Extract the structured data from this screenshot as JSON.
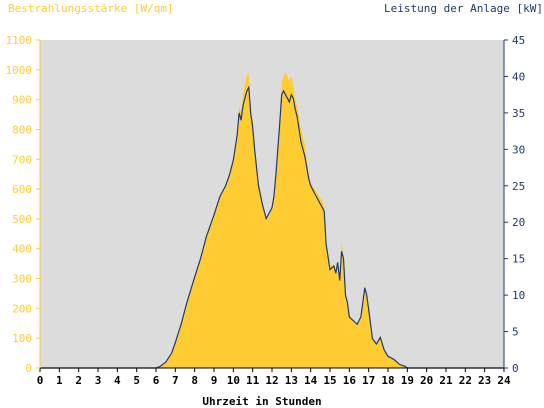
{
  "chart_data": {
    "type": "area",
    "left_axis_label": "Bestrahlungsstärke [W/qm]",
    "right_axis_label": "Leistung der Anlage [kW]",
    "xlabel": "Uhrzeit in Stunden",
    "xlim": [
      0,
      24
    ],
    "left_ylim": [
      0,
      1100
    ],
    "right_ylim": [
      0,
      45
    ],
    "x_ticks": [
      "0",
      "1",
      "2",
      "3",
      "4",
      "5",
      "6",
      "7",
      "8",
      "9",
      "10",
      "11",
      "12",
      "13",
      "14",
      "15",
      "16",
      "17",
      "18",
      "19",
      "20",
      "21",
      "22",
      "23",
      "24"
    ],
    "left_ticks": [
      "0",
      "100",
      "200",
      "300",
      "400",
      "500",
      "600",
      "700",
      "800",
      "900",
      "1000",
      "1100"
    ],
    "right_ticks": [
      "0",
      "5",
      "10",
      "15",
      "20",
      "25",
      "30",
      "35",
      "40",
      "45"
    ],
    "colors": {
      "plot_background": "#dcdcdc",
      "irradiance_fill": "#ffcc33",
      "left_axis_text": "#ffcc33",
      "power_line": "#1f3a6e",
      "right_axis_text": "#1f3a6e"
    },
    "series": [
      {
        "name": "Bestrahlungsstärke",
        "axis": "left",
        "style": "area",
        "x": [
          0,
          6,
          6.2,
          6.5,
          6.8,
          7,
          7.3,
          7.6,
          8,
          8.3,
          8.6,
          9,
          9.3,
          9.5,
          9.6,
          9.8,
          10,
          10.2,
          10.3,
          10.4,
          10.5,
          10.6,
          10.7,
          10.8,
          10.9,
          11,
          11.1,
          11.3,
          11.5,
          11.7,
          11.8,
          11.9,
          12,
          12.1,
          12.2,
          12.3,
          12.4,
          12.5,
          12.6,
          12.7,
          12.8,
          12.9,
          13,
          13.1,
          13.2,
          13.3,
          13.5,
          13.7,
          13.9,
          14,
          14.2,
          14.4,
          14.6,
          14.7,
          14.8,
          15,
          15.2,
          15.3,
          15.4,
          15.5,
          15.6,
          15.7,
          15.8,
          15.9,
          16,
          16.2,
          16.4,
          16.6,
          16.8,
          16.9,
          17,
          17.1,
          17.2,
          17.4,
          17.6,
          17.8,
          18,
          18.3,
          18.6,
          18.9,
          19,
          24
        ],
        "values": [
          0,
          0,
          5,
          20,
          50,
          90,
          150,
          220,
          300,
          370,
          440,
          520,
          580,
          600,
          610,
          650,
          700,
          800,
          880,
          860,
          920,
          950,
          980,
          990,
          850,
          830,
          760,
          620,
          560,
          500,
          510,
          520,
          540,
          580,
          650,
          740,
          820,
          960,
          980,
          990,
          980,
          960,
          980,
          950,
          900,
          880,
          800,
          750,
          650,
          620,
          600,
          580,
          560,
          540,
          420,
          340,
          350,
          320,
          360,
          300,
          420,
          380,
          250,
          220,
          180,
          160,
          150,
          170,
          280,
          250,
          200,
          150,
          100,
          80,
          110,
          60,
          40,
          30,
          10,
          5,
          0,
          0
        ]
      },
      {
        "name": "Leistung",
        "axis": "right",
        "style": "line",
        "x": [
          0,
          6,
          6.2,
          6.5,
          6.8,
          7,
          7.3,
          7.6,
          8,
          8.3,
          8.6,
          9,
          9.3,
          9.5,
          9.6,
          9.8,
          10,
          10.2,
          10.3,
          10.4,
          10.5,
          10.6,
          10.7,
          10.8,
          10.9,
          11,
          11.1,
          11.3,
          11.5,
          11.7,
          11.8,
          11.9,
          12,
          12.1,
          12.2,
          12.3,
          12.4,
          12.5,
          12.6,
          12.7,
          12.8,
          12.9,
          13,
          13.1,
          13.2,
          13.3,
          13.5,
          13.7,
          13.9,
          14,
          14.2,
          14.4,
          14.6,
          14.7,
          14.8,
          15,
          15.2,
          15.3,
          15.4,
          15.5,
          15.6,
          15.7,
          15.8,
          15.9,
          16,
          16.2,
          16.4,
          16.6,
          16.8,
          16.9,
          17,
          17.1,
          17.2,
          17.4,
          17.6,
          17.8,
          18,
          18.3,
          18.6,
          18.9,
          19,
          24
        ],
        "values": [
          0,
          0,
          0.2,
          0.8,
          2,
          3.5,
          6,
          9,
          12.5,
          15,
          18,
          21,
          23.5,
          24.5,
          25,
          26.5,
          28.5,
          32,
          35,
          34,
          36,
          37,
          38,
          38.5,
          35,
          33,
          30,
          25,
          22.5,
          20.5,
          21,
          21.5,
          22,
          23.5,
          26.5,
          30,
          33.5,
          37.5,
          38,
          37.5,
          37,
          36.5,
          37.5,
          37,
          35.5,
          34.5,
          31,
          29,
          26,
          25,
          24,
          23,
          22,
          21.5,
          17,
          13.5,
          14,
          13,
          14.5,
          12,
          16,
          15,
          10,
          9,
          7,
          6.5,
          6,
          7,
          11,
          10,
          8,
          6,
          4,
          3.3,
          4.2,
          2.5,
          1.6,
          1.2,
          0.5,
          0.2,
          0,
          0
        ]
      }
    ]
  }
}
